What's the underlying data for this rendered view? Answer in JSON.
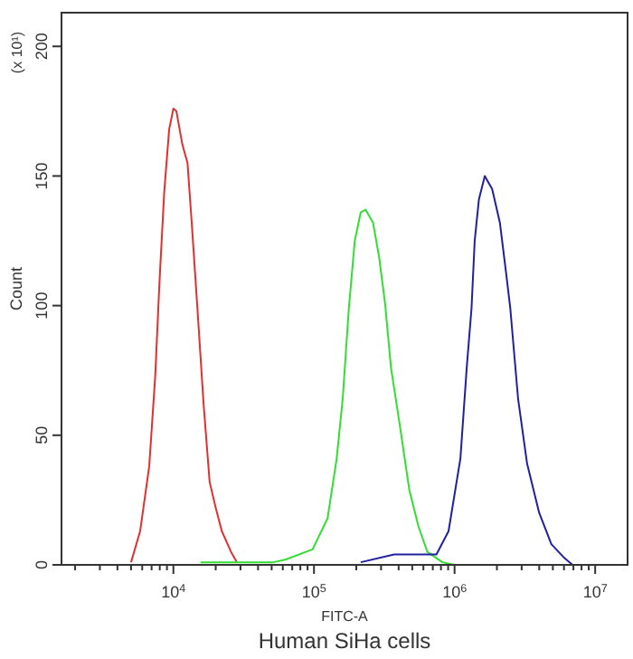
{
  "chart_data": {
    "type": "line",
    "title": "Human SiHa cells",
    "xlabel": "FITC-A",
    "ylabel": "Count",
    "annotations": [
      "(x 10¹)"
    ],
    "log": "x",
    "grid": false,
    "marker": "none",
    "line_style": "solid",
    "xlim": [
      1600,
      17000000
    ],
    "ylim": [
      0,
      213
    ],
    "xticks": [
      {
        "value": 2000,
        "label": null
      },
      {
        "value": 3000,
        "label": null
      },
      {
        "value": 4000,
        "label": null
      },
      {
        "value": 5000,
        "label": null
      },
      {
        "value": 6000,
        "label": null
      },
      {
        "value": 7000,
        "label": null
      },
      {
        "value": 8000,
        "label": null
      },
      {
        "value": 9000,
        "label": null
      },
      {
        "value": 10000,
        "label": "10$^{4}$"
      },
      {
        "value": 20000,
        "label": null
      },
      {
        "value": 30000,
        "label": null
      },
      {
        "value": 40000,
        "label": null
      },
      {
        "value": 50000,
        "label": null
      },
      {
        "value": 60000,
        "label": null
      },
      {
        "value": 70000,
        "label": null
      },
      {
        "value": 80000,
        "label": null
      },
      {
        "value": 90000,
        "label": null
      },
      {
        "value": 100000,
        "label": "10$^{5}$"
      },
      {
        "value": 200000,
        "label": null
      },
      {
        "value": 300000,
        "label": null
      },
      {
        "value": 400000,
        "label": null
      },
      {
        "value": 500000,
        "label": null
      },
      {
        "value": 600000,
        "label": null
      },
      {
        "value": 700000,
        "label": null
      },
      {
        "value": 800000,
        "label": null
      },
      {
        "value": 900000,
        "label": null
      },
      {
        "value": 1000000,
        "label": "10$^{6}$"
      },
      {
        "value": 2000000,
        "label": null
      },
      {
        "value": 3000000,
        "label": null
      },
      {
        "value": 4000000,
        "label": null
      },
      {
        "value": 5000000,
        "label": null
      },
      {
        "value": 6000000,
        "label": null
      },
      {
        "value": 7000000,
        "label": null
      },
      {
        "value": 8000000,
        "label": null
      },
      {
        "value": 9000000,
        "label": null
      },
      {
        "value": 10000000,
        "label": "10$^{7}$"
      }
    ],
    "yticks": [
      0,
      50,
      100,
      150,
      200
    ],
    "series": [
      {
        "color": "#e03030",
        "x": [
          5000,
          5800,
          6730,
          7430,
          7960,
          8610,
          9330,
          10000,
          10500,
          11600,
          12600,
          13500,
          14900,
          16400,
          18100,
          20000,
          22100,
          25700,
          28300
        ],
        "values": [
          1,
          13,
          38,
          73,
          109,
          144,
          168,
          176,
          175,
          162,
          155,
          132,
          97,
          62,
          32,
          22,
          13,
          5,
          1
        ]
      },
      {
        "color": "#33dd33",
        "x": [
          15600,
          51300,
          62500,
          97700,
          125000,
          145000,
          160000,
          177000,
          195000,
          215000,
          233000,
          263000,
          290000,
          320000,
          353000,
          410000,
          476000,
          552000,
          640000,
          820000,
          1000000
        ],
        "values": [
          1,
          1,
          2,
          6,
          18,
          41,
          64,
          99,
          125,
          136,
          137,
          132,
          119,
          101,
          76,
          53,
          29,
          15,
          5,
          1,
          0
        ]
      },
      {
        "color": "#2020a0",
        "x": [
          215000,
          372000,
          604000,
          743000,
          906000,
          1100000,
          1220000,
          1320000,
          1390000,
          1490000,
          1640000,
          1850000,
          2100000,
          2320000,
          2490000,
          2830000,
          3280000,
          4000000,
          4880000,
          5950000,
          6900000
        ],
        "values": [
          1,
          4,
          4,
          4,
          13,
          41,
          76,
          99,
          125,
          141,
          150,
          145,
          132,
          113,
          99,
          64,
          39,
          20,
          8,
          3,
          0
        ]
      }
    ]
  }
}
